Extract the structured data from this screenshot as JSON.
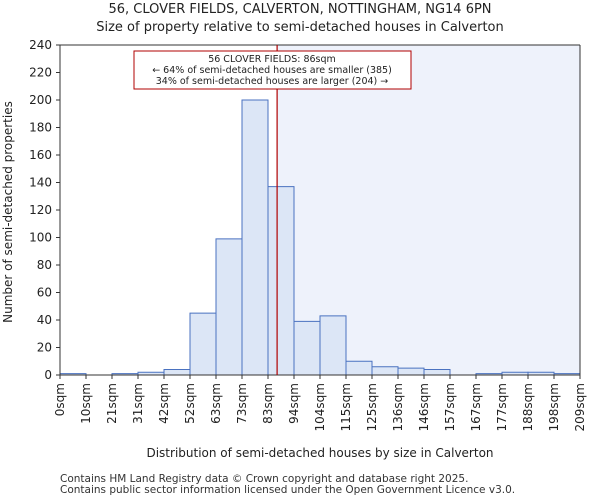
{
  "chart_data": {
    "type": "bar",
    "title": "56, CLOVER FIELDS, CALVERTON, NOTTINGHAM, NG14 6PN",
    "subtitle": "Size of property relative to semi-detached houses in Calverton",
    "xlabel": "Distribution of semi-detached houses by size in Calverton",
    "ylabel": "Number of semi-detached properties",
    "ylim": [
      0,
      240
    ],
    "yticks": [
      0,
      20,
      40,
      60,
      80,
      100,
      120,
      140,
      160,
      180,
      200,
      220,
      240
    ],
    "tick_labels": [
      "0sqm",
      "10sqm",
      "21sqm",
      "31sqm",
      "42sqm",
      "52sqm",
      "63sqm",
      "73sqm",
      "83sqm",
      "94sqm",
      "104sqm",
      "115sqm",
      "125sqm",
      "136sqm",
      "146sqm",
      "157sqm",
      "167sqm",
      "177sqm",
      "188sqm",
      "198sqm",
      "209sqm"
    ],
    "values": [
      1,
      0,
      1,
      2,
      4,
      45,
      99,
      200,
      137,
      39,
      43,
      10,
      6,
      5,
      4,
      0,
      1,
      2,
      2,
      1
    ],
    "bin_width_ticks": 1,
    "marker": {
      "value_index": 8.35,
      "label": "56 CLOVER FIELDS: 86sqm"
    },
    "annotation": {
      "line1": "56 CLOVER FIELDS: 86sqm",
      "line2": "← 64% of semi-detached houses are smaller (385)",
      "line3": "34% of semi-detached houses are larger (204) →"
    },
    "colors": {
      "bar_fill": "#dce6f6",
      "bar_stroke": "#4a72c0",
      "marker": "#b00000",
      "shade": "#eef2fb"
    }
  },
  "footer": {
    "line1": "Contains HM Land Registry data © Crown copyright and database right 2025.",
    "line2": "Contains public sector information licensed under the Open Government Licence v3.0."
  }
}
